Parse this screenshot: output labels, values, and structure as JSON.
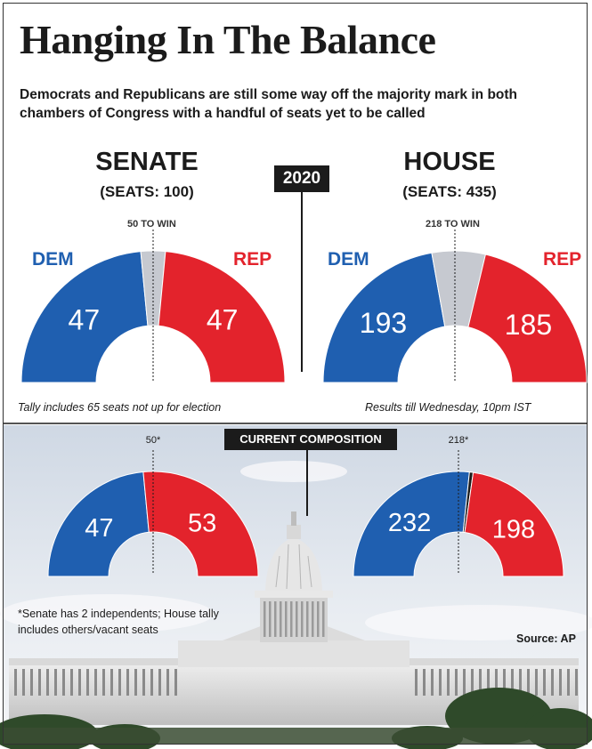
{
  "title": "Hanging In The Balance",
  "subtitle": "Democrats and Republicans are still some way off the majority mark in both chambers of Congress with a handful of seats yet to be called",
  "year_badge": "2020",
  "current_badge": "CURRENT COMPOSITION",
  "senate": {
    "name": "SENATE",
    "seats_label": "(SEATS: 100)",
    "to_win_label": "50 TO WIN",
    "dem_label": "DEM",
    "rep_label": "REP"
  },
  "house": {
    "name": "HOUSE",
    "seats_label": "(SEATS: 435)",
    "to_win_label": "218 TO WIN",
    "dem_label": "DEM",
    "rep_label": "REP"
  },
  "notes": {
    "senate_tally": "Tally includes 65 seats not up for election",
    "house_results": "Results till Wednesday, 10pm IST",
    "footnote": "*Senate has 2 independents; House tally includes others/vacant seats",
    "source": "Source: AP"
  },
  "colors": {
    "dem": "#1f5fb0",
    "rep": "#e3232c",
    "undecided": "#c6c9d0",
    "dark": "#1b1b1b"
  },
  "chart_data": [
    {
      "type": "pie",
      "title": "SENATE",
      "subtitle": "(SEATS: 100)",
      "group": "2020",
      "total": 100,
      "majority_label": "50 TO WIN",
      "slices": [
        {
          "name": "DEM",
          "value": 47
        },
        {
          "name": "Undecided",
          "value": 6
        },
        {
          "name": "REP",
          "value": 47
        }
      ]
    },
    {
      "type": "pie",
      "title": "HOUSE",
      "subtitle": "(SEATS: 435)",
      "group": "2020",
      "total": 435,
      "majority_label": "218 TO WIN",
      "slices": [
        {
          "name": "DEM",
          "value": 193
        },
        {
          "name": "Undecided",
          "value": 57
        },
        {
          "name": "REP",
          "value": 185
        }
      ]
    },
    {
      "type": "pie",
      "title": "SENATE",
      "group": "CURRENT COMPOSITION",
      "total": 100,
      "majority_label": "50*",
      "slices": [
        {
          "name": "DEM",
          "value": 47
        },
        {
          "name": "REP",
          "value": 53
        }
      ]
    },
    {
      "type": "pie",
      "title": "HOUSE",
      "group": "CURRENT COMPOSITION",
      "total": 435,
      "majority_label": "218*",
      "slices": [
        {
          "name": "DEM",
          "value": 232
        },
        {
          "name": "Other/Vacant",
          "value": 5
        },
        {
          "name": "REP",
          "value": 198
        }
      ]
    }
  ]
}
